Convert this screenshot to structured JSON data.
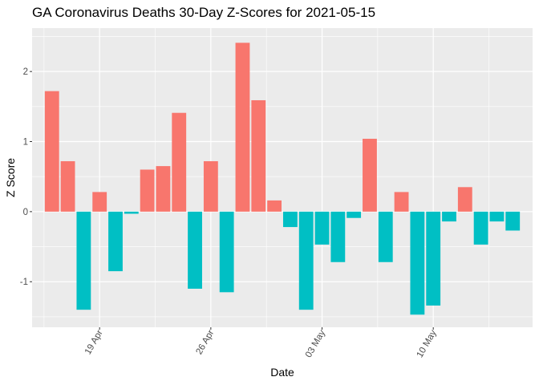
{
  "chart_data": {
    "type": "bar",
    "title": "GA Coronavirus Deaths 30-Day Z-Scores for 2021-05-15",
    "xlabel": "Date",
    "ylabel": "Z Score",
    "x": [
      "2021-04-16",
      "2021-04-17",
      "2021-04-18",
      "2021-04-19",
      "2021-04-20",
      "2021-04-21",
      "2021-04-22",
      "2021-04-23",
      "2021-04-24",
      "2021-04-25",
      "2021-04-26",
      "2021-04-27",
      "2021-04-28",
      "2021-04-29",
      "2021-04-30",
      "2021-05-01",
      "2021-05-02",
      "2021-05-03",
      "2021-05-04",
      "2021-05-05",
      "2021-05-06",
      "2021-05-07",
      "2021-05-08",
      "2021-05-09",
      "2021-05-10",
      "2021-05-11",
      "2021-05-12",
      "2021-05-13",
      "2021-05-14",
      "2021-05-15"
    ],
    "values": [
      1.72,
      0.72,
      -1.4,
      0.28,
      -0.85,
      -0.03,
      0.6,
      0.65,
      1.41,
      -1.1,
      0.72,
      -1.15,
      2.41,
      1.59,
      0.16,
      -0.22,
      -1.4,
      -0.47,
      -0.72,
      -0.09,
      1.04,
      -0.72,
      0.28,
      -1.47,
      -1.34,
      -0.14,
      0.35,
      -0.47,
      -0.14,
      -0.27
    ],
    "ylim": [
      -1.65,
      2.62
    ],
    "yticks": [
      -1,
      0,
      1,
      2
    ],
    "ytick_labels": [
      "-1",
      "0",
      "1",
      "2"
    ],
    "xticks": [
      "2021-04-19",
      "2021-04-26",
      "2021-05-03",
      "2021-05-10"
    ],
    "xtick_labels": [
      "19 Apr",
      "26 Apr",
      "03 May",
      "10 May"
    ],
    "colors": {
      "positive": "#F8766D",
      "negative": "#00BFC4",
      "panel": "#EBEBEB",
      "grid": "#FFFFFF",
      "axis_text": "#4D4D4D"
    },
    "legend": "none",
    "grid": true
  }
}
